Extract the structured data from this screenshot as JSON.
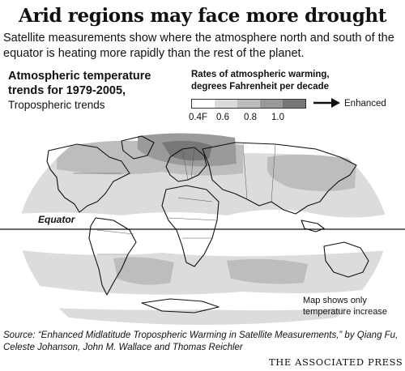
{
  "title": "Arid regions may face more drought",
  "subtitle": "Satellite measurements show where the atmosphere north and south of the equator is heating more rapidly than the rest of the planet.",
  "map_heading": {
    "line1": "Atmospheric temperature",
    "line2": "trends for 1979-2005,",
    "line3": "Tropospheric trends"
  },
  "legend": {
    "title_line1": "Rates of atmospheric warming,",
    "title_line2": "degrees Fahrenheit per decade",
    "ticks": [
      "0.4F",
      "0.6",
      "0.8",
      "1.0"
    ],
    "enhanced_label": "Enhanced",
    "colors": [
      "#ffffff",
      "#dcdcdc",
      "#bdbdbd",
      "#9a9a9a",
      "#777777"
    ]
  },
  "equator_label": "Equator",
  "note": "Map shows only temperature increase",
  "source": "Source: “Enhanced Midlatitude Tropospheric Warming in Satellite Measurements,” by Qiang Fu, Celeste Johanson, John M. Wallace and Thomas Reichler",
  "credit": "THE ASSOCIATED PRESS"
}
